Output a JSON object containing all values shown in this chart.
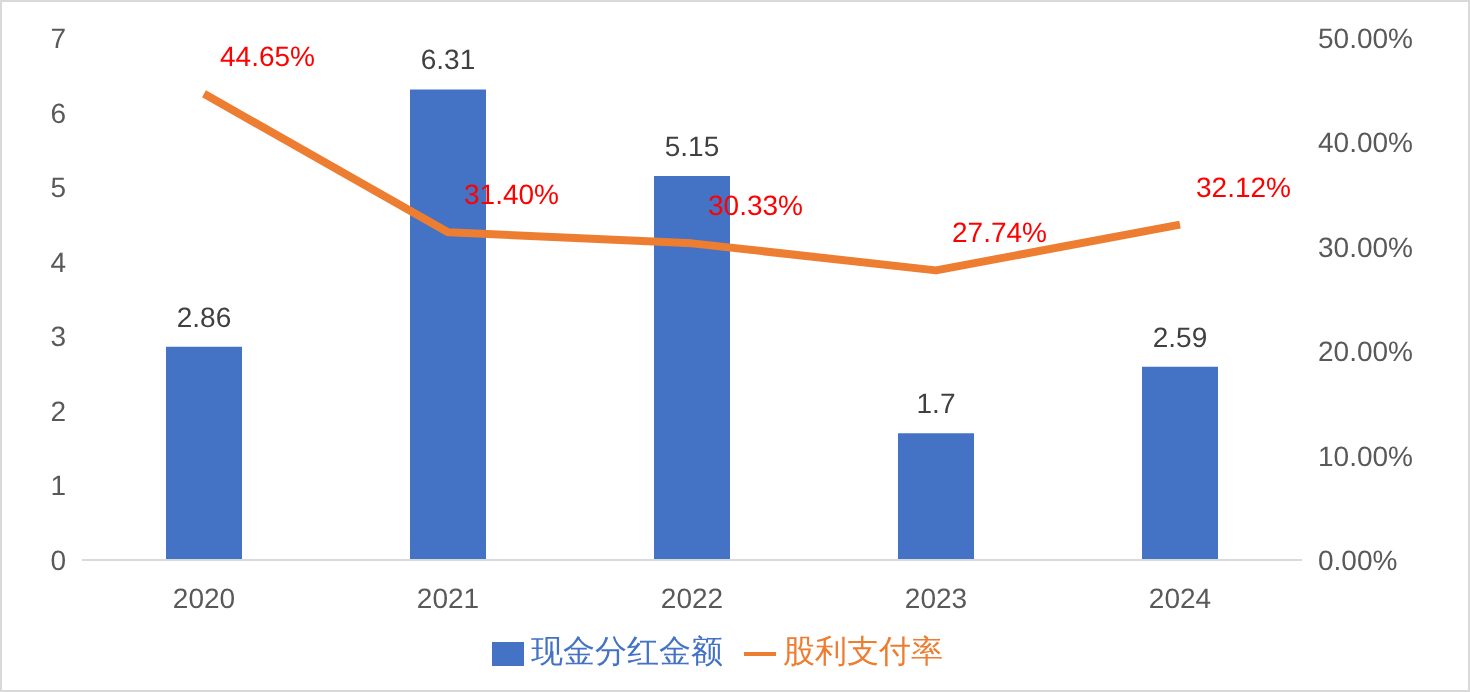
{
  "chart_data": {
    "type": "bar",
    "categories": [
      "2020",
      "2021",
      "2022",
      "2023",
      "2024"
    ],
    "series": [
      {
        "name": "现金分红金额",
        "color": "#4472c4",
        "values": [
          2.86,
          6.31,
          5.15,
          1.7,
          2.59
        ],
        "value_labels": [
          "2.86",
          "6.31",
          "5.15",
          "1.7",
          "2.59"
        ]
      },
      {
        "name": "股利支付率",
        "type": "line",
        "axis": "y2",
        "color": "#ed7d31",
        "values": [
          44.65,
          31.4,
          30.33,
          27.74,
          32.12
        ],
        "value_labels": [
          "44.65%",
          "31.40%",
          "30.33%",
          "27.74%",
          "32.12%"
        ]
      }
    ],
    "ylim": [
      0,
      7
    ],
    "yticks": [
      0,
      1,
      2,
      3,
      4,
      5,
      6,
      7
    ],
    "y2lim": [
      0,
      50
    ],
    "y2ticks": [
      {
        "value": 0,
        "label": "0.00%"
      },
      {
        "value": 10,
        "label": "10.00%"
      },
      {
        "value": 20,
        "label": "20.00%"
      },
      {
        "value": 30,
        "label": "30.00%"
      },
      {
        "value": 40,
        "label": "40.00%"
      },
      {
        "value": 50,
        "label": "50.00%"
      }
    ],
    "grid": false,
    "legend": "bottom",
    "marker": "none"
  }
}
